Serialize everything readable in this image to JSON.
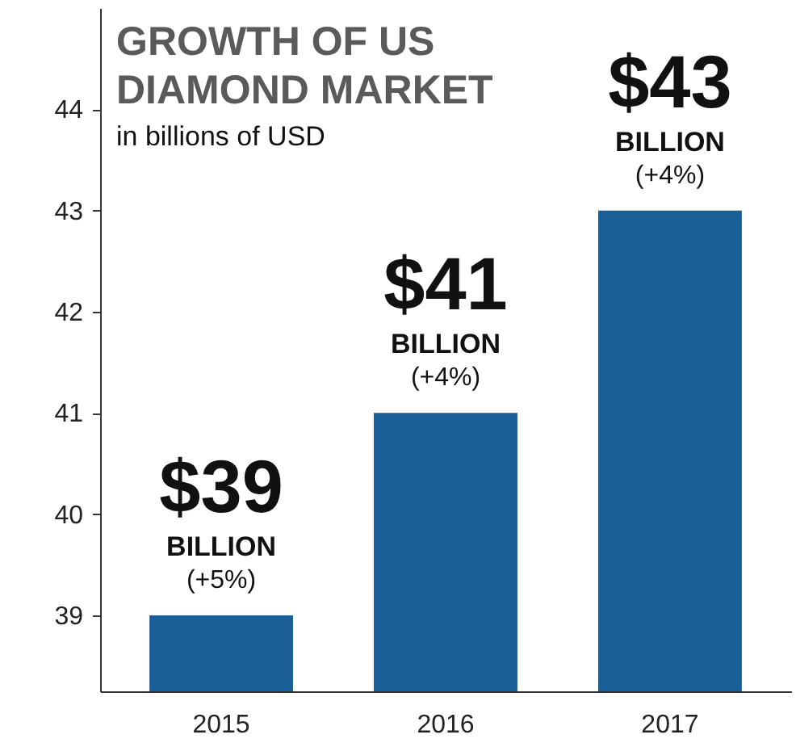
{
  "chart_data": {
    "type": "bar",
    "title": "GROWTH OF US DIAMOND MARKET",
    "subtitle": "in billions of USD",
    "categories": [
      "2015",
      "2016",
      "2017"
    ],
    "values": [
      39,
      41,
      43
    ],
    "color": "#195e97",
    "value_labels": [
      "$39",
      "$41",
      "$43"
    ],
    "annotations": [
      {
        "text": "BILLION",
        "x": "2015",
        "y": 39
      },
      {
        "text": "(+5%)",
        "x": "2015",
        "y": 39
      },
      {
        "text": "BILLION",
        "x": "2016",
        "y": 41
      },
      {
        "text": "(+4%)",
        "x": "2016",
        "y": 41
      },
      {
        "text": "BILLION",
        "x": "2017",
        "y": 43
      },
      {
        "text": "(+4%)",
        "x": "2017",
        "y": 43
      }
    ],
    "ylim": [
      38.25,
      45
    ],
    "yticks": [
      39,
      40,
      41,
      42,
      43,
      44
    ],
    "grid": false
  }
}
